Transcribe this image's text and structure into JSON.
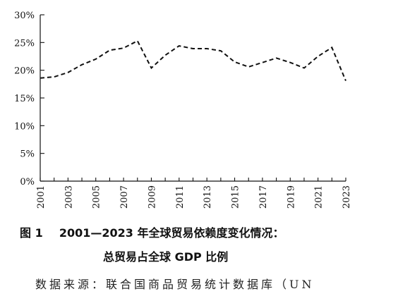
{
  "chart_data": {
    "type": "line",
    "x": [
      2001,
      2002,
      2003,
      2004,
      2005,
      2006,
      2007,
      2008,
      2009,
      2010,
      2011,
      2012,
      2013,
      2014,
      2015,
      2016,
      2017,
      2018,
      2019,
      2020,
      2021,
      2022,
      2023
    ],
    "series": [
      {
        "name": "",
        "values": [
          18.6,
          18.8,
          19.6,
          21.0,
          22.0,
          23.6,
          24.0,
          25.3,
          20.4,
          22.7,
          24.4,
          23.9,
          23.9,
          23.5,
          21.5,
          20.6,
          21.4,
          22.2,
          21.4,
          20.4,
          22.5,
          24.1,
          18.1
        ]
      }
    ],
    "x_tick_labels": [
      "2001",
      "2003",
      "2005",
      "2007",
      "2009",
      "2011",
      "2013",
      "2015",
      "2017",
      "2019",
      "2021",
      "2023"
    ],
    "y_tick_labels": [
      "0%",
      "5%",
      "10%",
      "15%",
      "20%",
      "25%",
      "30%"
    ],
    "ylim": [
      0,
      30
    ],
    "xlim": [
      2001,
      2023
    ],
    "line_style": "dashed",
    "line_color": "#111111",
    "grid": false,
    "legend": false,
    "title": "",
    "xlabel": "",
    "ylabel": ""
  },
  "caption": {
    "label": "图 1",
    "line1": "2001—2023 年全球贸易依赖度变化情况：",
    "line2": "总贸易占全球 GDP 比例"
  },
  "source": {
    "text": "数据来源：联合国商品贸易统计数据库（UN"
  }
}
